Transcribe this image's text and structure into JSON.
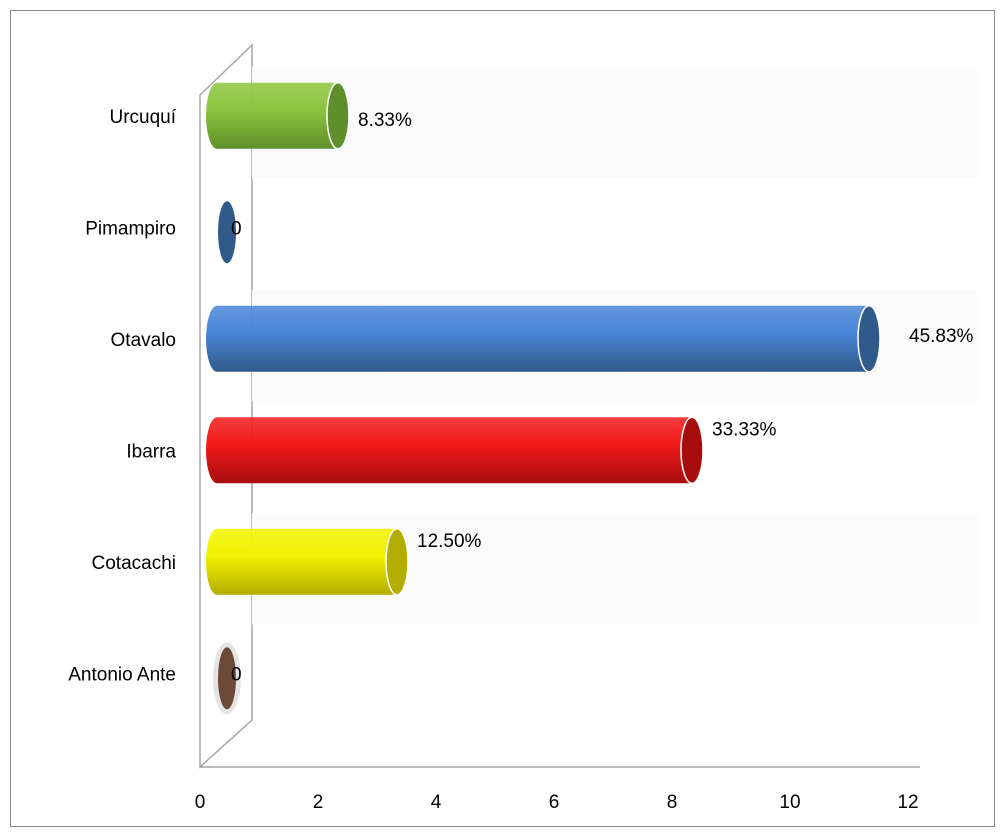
{
  "chart_data": {
    "type": "bar",
    "orientation": "horizontal",
    "style": "3d-cylinder",
    "categories": [
      "Antonio Ante",
      "Cotacachi",
      "Ibarra",
      "Otavalo",
      "Pimampiro",
      "Urcuquí"
    ],
    "values": [
      0,
      3,
      8,
      11,
      0,
      2
    ],
    "data_labels": [
      "0",
      "12.50%",
      "33.33%",
      "45.83%",
      "0",
      "8.33%"
    ],
    "colors": [
      "#6b4a3a",
      "#f2f200",
      "#f21a1a",
      "#4a86d8",
      "#2f5a8a",
      "#8cc63f"
    ],
    "end_colors": [
      "#6b4a3a",
      "#b3ad00",
      "#a80d0d",
      "#2f5a8a",
      "#2f5a8a",
      "#5f8f2a"
    ],
    "xlim": [
      0,
      12
    ],
    "xticks": [
      "0",
      "2",
      "4",
      "6",
      "8",
      "10",
      "12"
    ],
    "title": "",
    "xlabel": "",
    "ylabel": "",
    "grid": false,
    "legend": "none"
  }
}
